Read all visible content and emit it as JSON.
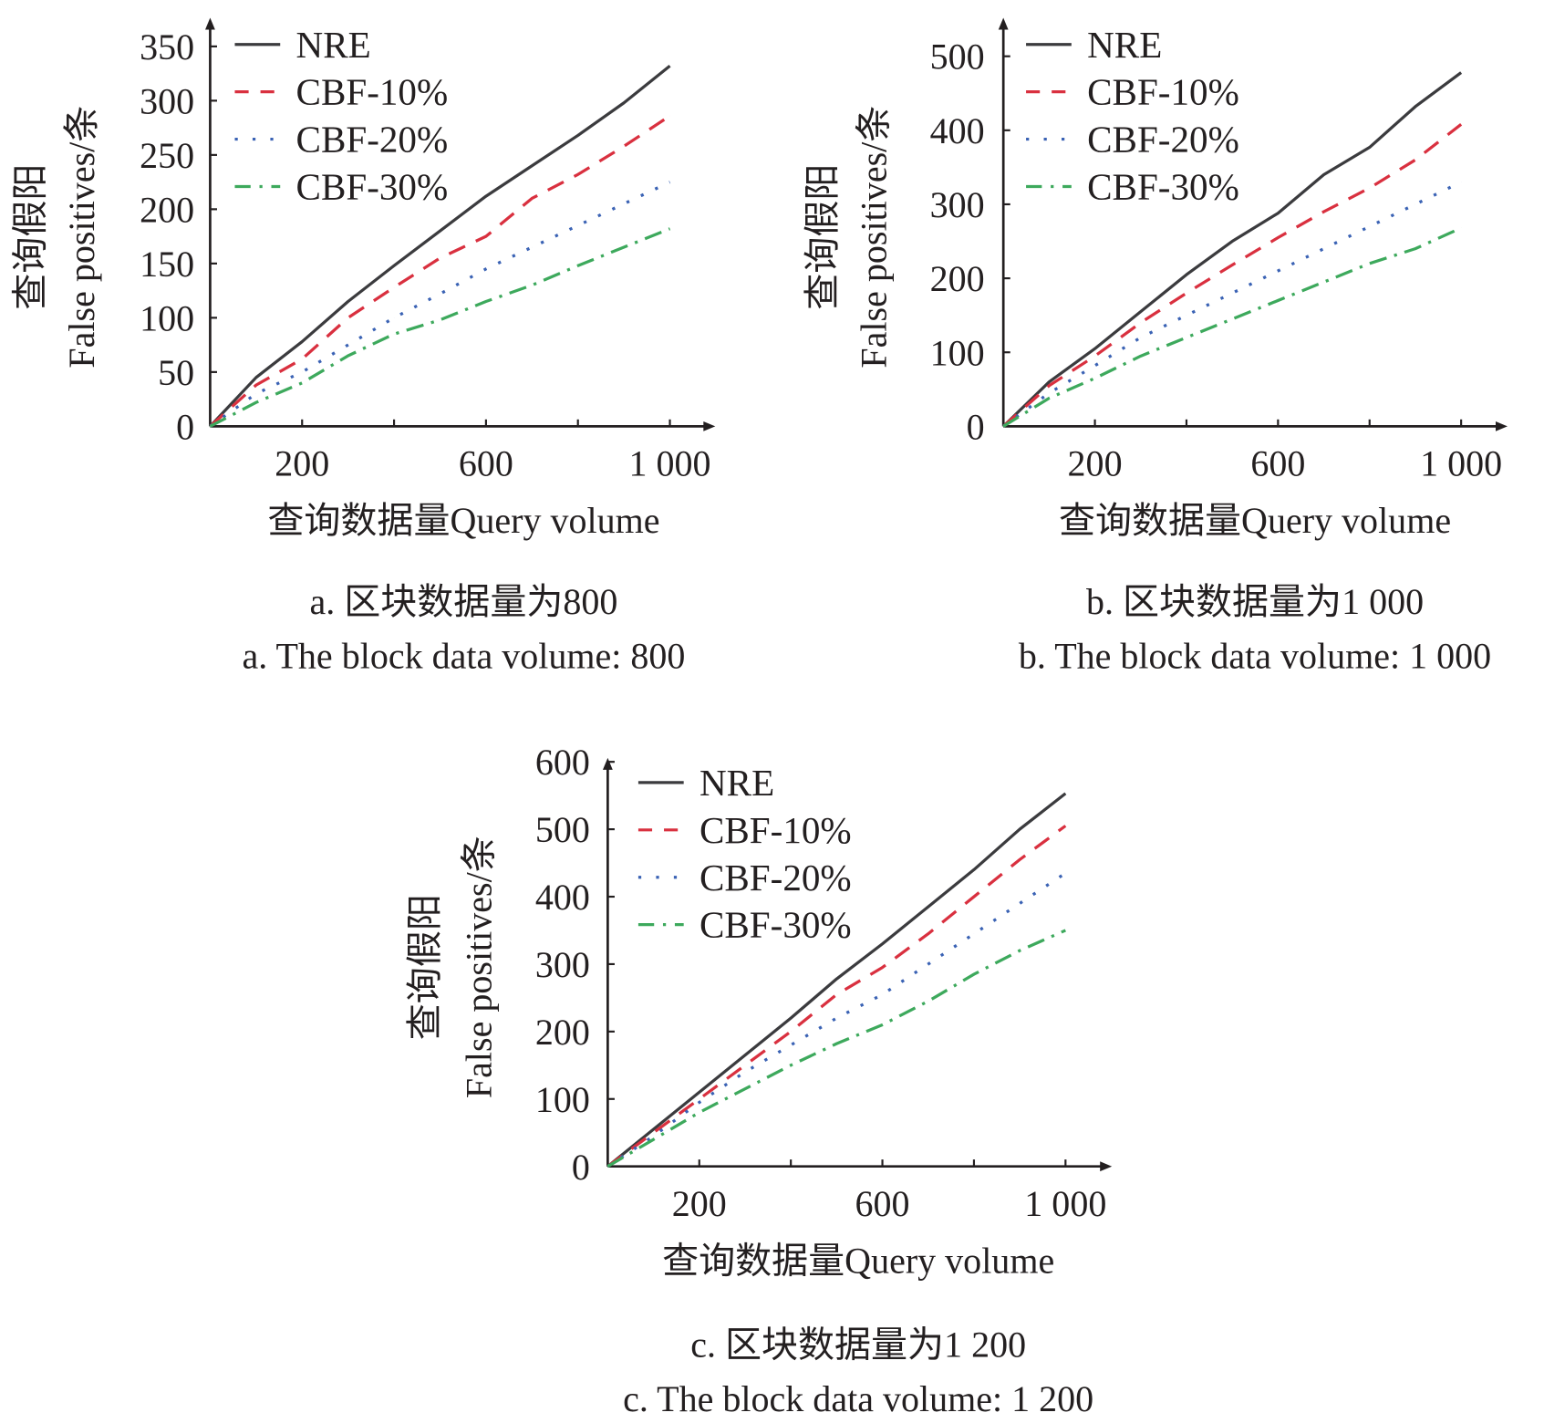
{
  "colors": {
    "NRE": "#3b3b3e",
    "CBF-10%": "#d9303f",
    "CBF-20%": "#3a62b4",
    "CBF-30%": "#3da95c"
  },
  "chart_data": [
    {
      "type": "line",
      "caption_cn": "a. 区块数据量为800",
      "caption_en": "a. The block data volume: 800",
      "ylabel_cn": "查询假阳",
      "ylabel_en": "False positives/条",
      "xlabel": "查询数据量Query volume",
      "ylim": [
        0,
        350
      ],
      "yticks": [
        "0",
        "50",
        "100",
        "150",
        "200",
        "250",
        "300",
        "350"
      ],
      "xlim": [
        0,
        1000
      ],
      "xticks": [
        "200",
        "600",
        "1 000"
      ],
      "legend_position": "top-left",
      "x": [
        0,
        100,
        200,
        300,
        400,
        500,
        600,
        700,
        800,
        900,
        1000
      ],
      "series": [
        {
          "name": "NRE",
          "values": [
            0,
            45,
            78,
            115,
            148,
            180,
            212,
            240,
            268,
            298,
            332
          ]
        },
        {
          "name": "CBF-10%",
          "values": [
            0,
            38,
            62,
            100,
            128,
            155,
            175,
            210,
            232,
            258,
            286
          ]
        },
        {
          "name": "CBF-20%",
          "values": [
            0,
            30,
            50,
            75,
            100,
            122,
            145,
            165,
            185,
            205,
            225
          ]
        },
        {
          "name": "CBF-30%",
          "values": [
            0,
            22,
            40,
            65,
            85,
            98,
            115,
            130,
            148,
            165,
            182
          ]
        }
      ]
    },
    {
      "type": "line",
      "caption_cn": "b. 区块数据量为1 000",
      "caption_en": "b. The block data volume: 1 000",
      "ylabel_cn": "查询假阳",
      "ylabel_en": "False positives/条",
      "xlabel": "查询数据量Query volume",
      "ylim": [
        0,
        500
      ],
      "yticks": [
        "0",
        "100",
        "200",
        "300",
        "400",
        "500"
      ],
      "xlim": [
        0,
        1000
      ],
      "xticks": [
        "200",
        "600",
        "1 000"
      ],
      "legend_position": "top-left",
      "x": [
        0,
        100,
        200,
        300,
        400,
        500,
        600,
        700,
        800,
        900,
        1000
      ],
      "series": [
        {
          "name": "NRE",
          "values": [
            0,
            60,
            105,
            155,
            205,
            250,
            288,
            340,
            377,
            432,
            478
          ]
        },
        {
          "name": "CBF-10%",
          "values": [
            0,
            55,
            95,
            140,
            180,
            218,
            255,
            290,
            322,
            360,
            408
          ]
        },
        {
          "name": "CBF-20%",
          "values": [
            0,
            45,
            82,
            120,
            150,
            180,
            210,
            240,
            270,
            300,
            330
          ]
        },
        {
          "name": "CBF-30%",
          "values": [
            0,
            38,
            65,
            95,
            120,
            145,
            170,
            195,
            220,
            240,
            268
          ]
        }
      ]
    },
    {
      "type": "line",
      "caption_cn": "c. 区块数据量为1 200",
      "caption_en": "c. The block data volume: 1 200",
      "ylabel_cn": "查询假阳",
      "ylabel_en": "False positives/条",
      "xlabel": "查询数据量Query volume",
      "ylim": [
        0,
        600
      ],
      "yticks": [
        "0",
        "100",
        "200",
        "300",
        "400",
        "500",
        "600"
      ],
      "xlim": [
        0,
        1000
      ],
      "xticks": [
        "200",
        "600",
        "1 000"
      ],
      "legend_position": "top-left",
      "x": [
        0,
        100,
        200,
        300,
        400,
        500,
        600,
        700,
        800,
        900,
        1000
      ],
      "series": [
        {
          "name": "NRE",
          "values": [
            0,
            55,
            110,
            165,
            220,
            278,
            330,
            385,
            440,
            500,
            553
          ]
        },
        {
          "name": "CBF-10%",
          "values": [
            0,
            50,
            100,
            150,
            200,
            255,
            295,
            345,
            400,
            455,
            505
          ]
        },
        {
          "name": "CBF-20%",
          "values": [
            0,
            45,
            95,
            140,
            180,
            220,
            255,
            300,
            345,
            390,
            435
          ]
        },
        {
          "name": "CBF-30%",
          "values": [
            0,
            40,
            80,
            115,
            150,
            182,
            210,
            245,
            285,
            320,
            350
          ]
        }
      ]
    }
  ]
}
